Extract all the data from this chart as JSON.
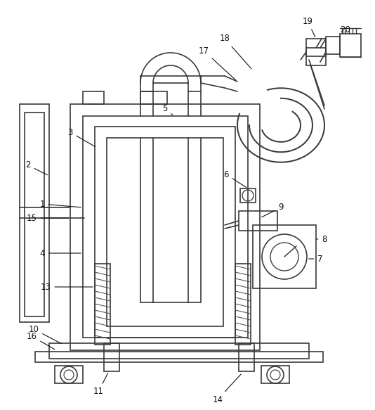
{
  "bg_color": "#ffffff",
  "line_color": "#3a3a3a",
  "lw": 1.2
}
